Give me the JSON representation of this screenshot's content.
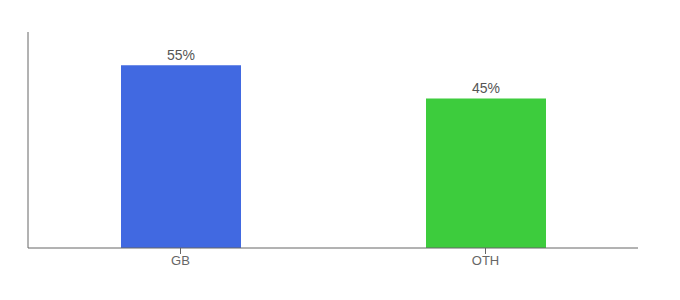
{
  "chart_data": {
    "type": "bar",
    "categories": [
      "GB",
      "OTH"
    ],
    "values": [
      55,
      45
    ],
    "value_labels": [
      "55%",
      "45%"
    ],
    "colors": [
      "#4169e1",
      "#3dcc3d"
    ],
    "ylim": [
      0,
      65
    ],
    "data_labels": true,
    "tick_labels": "x",
    "grid": false
  }
}
